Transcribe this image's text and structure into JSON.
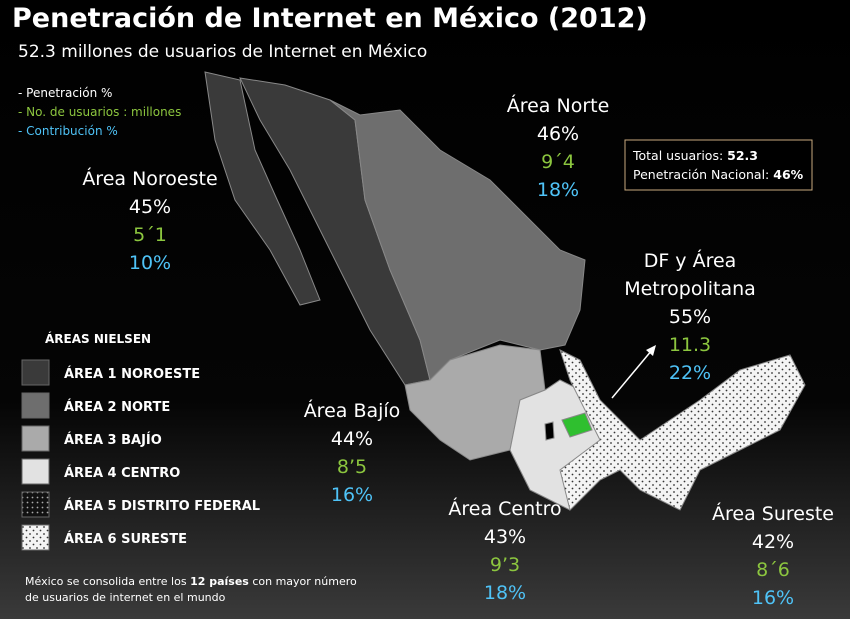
{
  "header": {
    "title": "Penetración de Internet en México (2012)",
    "subtitle": "52.3 millones de usuarios de Internet en México"
  },
  "key": [
    "- Penetración %",
    "- No. de usuarios : millones",
    "- Contribución %"
  ],
  "summary": {
    "rows": [
      {
        "label": "Total usuarios:",
        "value": "52.3"
      },
      {
        "label": "Penetración Nacional:",
        "value": "46%"
      }
    ]
  },
  "areas": [
    {
      "name": [
        "Área Noroeste"
      ],
      "penetration": "45%",
      "users": "5´1",
      "contribution": "10%"
    },
    {
      "name": [
        "Área Norte"
      ],
      "penetration": "46%",
      "users": "9´4",
      "contribution": "18%"
    },
    {
      "name": [
        "DF y Área",
        "Metropolitana"
      ],
      "penetration": "55%",
      "users": "11.3",
      "contribution": "22%"
    },
    {
      "name": [
        "Área Bajío"
      ],
      "penetration": "44%",
      "users": "8’5",
      "contribution": "16%"
    },
    {
      "name": [
        "Área Centro"
      ],
      "penetration": "43%",
      "users": "9’3",
      "contribution": "18%"
    },
    {
      "name": [
        "Área Sureste"
      ],
      "penetration": "42%",
      "users": "8´6",
      "contribution": "16%"
    }
  ],
  "legend": {
    "title": "ÁREAS NIELSEN",
    "items": [
      "ÁREA 1 NOROESTE",
      "ÁREA 2 NORTE",
      "ÁREA 3 BAJÍO",
      "ÁREA 4 CENTRO",
      "ÁREA 5 DISTRITO FEDERAL",
      "ÁREA 6 SURESTE"
    ]
  },
  "footnote": {
    "before": "México se consolida entre los",
    "bold": "12 países",
    "after": "con mayor número",
    "line2": "de usuarios de internet en el mundo"
  }
}
